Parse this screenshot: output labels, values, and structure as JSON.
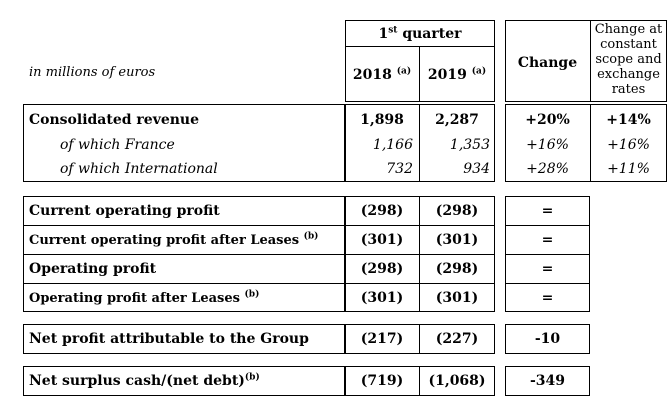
{
  "header": {
    "units": "in millions of euros",
    "quarter_label": "1",
    "quarter_sup": "st",
    "quarter_rest": "quarter",
    "col_2018": "2018",
    "col_2019": "2019",
    "col_note": "(a)",
    "change": "Change",
    "change_constant_lines": [
      "Change at",
      "constant",
      "scope and",
      "exchange",
      "rates"
    ]
  },
  "revenue": [
    {
      "label": "Consolidated revenue",
      "y2018": "1,898",
      "y2019": "2,287",
      "change": "+20%",
      "change_constant": "+14%"
    },
    {
      "label": "of which France",
      "y2018": "1,166",
      "y2019": "1,353",
      "change": "+16%",
      "change_constant": "+16%"
    },
    {
      "label": "of which International",
      "y2018": "732",
      "y2019": "934",
      "change": "+28%",
      "change_constant": "+11%"
    }
  ],
  "profit": [
    {
      "label": "Current operating profit",
      "note": "",
      "y2018": "(298)",
      "y2019": "(298)",
      "change": "="
    },
    {
      "label": "Current operating profit after Leases",
      "note": "(b)",
      "y2018": "(301)",
      "y2019": "(301)",
      "change": "="
    },
    {
      "label": "Operating profit",
      "note": "",
      "y2018": "(298)",
      "y2019": "(298)",
      "change": "="
    },
    {
      "label": "Operating profit after Leases",
      "note": "(b)",
      "y2018": "(301)",
      "y2019": "(301)",
      "change": "="
    }
  ],
  "net_profit": {
    "label": "Net profit attributable to the Group",
    "y2018": "(217)",
    "y2019": "(227)",
    "change": "-10"
  },
  "net_cash": {
    "label": "Net surplus cash/(net debt)",
    "note": "(b)",
    "y2018": "(719)",
    "y2019": "(1,068)",
    "change": "-349"
  }
}
